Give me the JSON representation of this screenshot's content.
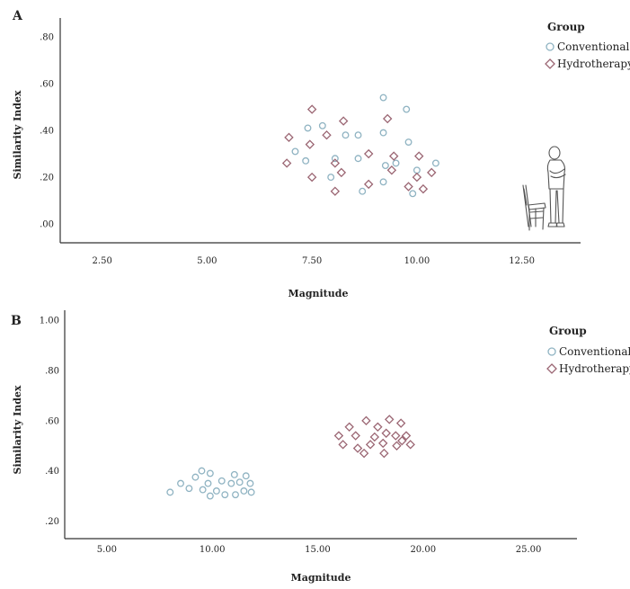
{
  "chart_data": [
    {
      "panel": "A",
      "type": "scatter",
      "xlabel": "Magnitude",
      "ylabel": "Similarity Index",
      "xlim": [
        1.5,
        13.9
      ],
      "ylim": [
        -0.08,
        0.88
      ],
      "xticks": [
        2.5,
        5.0,
        7.5,
        10.0,
        12.5
      ],
      "xtick_labels": [
        "2.50",
        "5.00",
        "7.50",
        "10.00",
        "12.50"
      ],
      "yticks": [
        0.0,
        0.2,
        0.4,
        0.6,
        0.8
      ],
      "ytick_labels": [
        ".00",
        ".20",
        ".40",
        ".60",
        ".80"
      ],
      "legend": {
        "title": "Group",
        "position": "top-right"
      },
      "series": [
        {
          "name": "Conventional",
          "marker": "circle",
          "color": "#8fb3c2",
          "points": [
            [
              7.4,
              0.41
            ],
            [
              7.1,
              0.31
            ],
            [
              7.35,
              0.27
            ],
            [
              7.75,
              0.42
            ],
            [
              8.05,
              0.28
            ],
            [
              8.3,
              0.38
            ],
            [
              8.6,
              0.38
            ],
            [
              7.95,
              0.2
            ],
            [
              8.6,
              0.28
            ],
            [
              8.7,
              0.14
            ],
            [
              9.2,
              0.54
            ],
            [
              9.2,
              0.39
            ],
            [
              9.25,
              0.25
            ],
            [
              9.5,
              0.26
            ],
            [
              9.75,
              0.49
            ],
            [
              9.8,
              0.35
            ],
            [
              9.2,
              0.18
            ],
            [
              10.0,
              0.23
            ],
            [
              9.9,
              0.13
            ],
            [
              10.45,
              0.26
            ]
          ]
        },
        {
          "name": "Hydrotherapy",
          "marker": "diamond",
          "color": "#9b6673",
          "points": [
            [
              7.5,
              0.49
            ],
            [
              6.95,
              0.37
            ],
            [
              6.9,
              0.26
            ],
            [
              7.45,
              0.34
            ],
            [
              7.85,
              0.38
            ],
            [
              8.25,
              0.44
            ],
            [
              8.05,
              0.26
            ],
            [
              8.2,
              0.22
            ],
            [
              7.5,
              0.2
            ],
            [
              8.05,
              0.14
            ],
            [
              8.85,
              0.3
            ],
            [
              8.85,
              0.17
            ],
            [
              9.3,
              0.45
            ],
            [
              9.45,
              0.29
            ],
            [
              9.4,
              0.23
            ],
            [
              9.8,
              0.16
            ],
            [
              10.05,
              0.29
            ],
            [
              10.0,
              0.2
            ],
            [
              10.35,
              0.22
            ],
            [
              10.15,
              0.15
            ]
          ]
        }
      ]
    },
    {
      "panel": "B",
      "type": "scatter",
      "xlabel": "Magnitude",
      "ylabel": "Similarity Index",
      "xlim": [
        3.0,
        27.3
      ],
      "ylim": [
        0.13,
        1.04
      ],
      "xticks": [
        5.0,
        10.0,
        15.0,
        20.0,
        25.0
      ],
      "xtick_labels": [
        "5.00",
        "10.00",
        "15.00",
        "20.00",
        "25.00"
      ],
      "yticks": [
        0.2,
        0.4,
        0.6,
        0.8,
        1.0
      ],
      "ytick_labels": [
        ".20",
        ".40",
        ".60",
        ".80",
        "1.00"
      ],
      "legend": {
        "title": "Group",
        "position": "top-right"
      },
      "series": [
        {
          "name": "Conventional",
          "marker": "circle",
          "color": "#8fb3c2",
          "points": [
            [
              8.0,
              0.315
            ],
            [
              8.5,
              0.35
            ],
            [
              8.9,
              0.33
            ],
            [
              9.2,
              0.375
            ],
            [
              9.5,
              0.4
            ],
            [
              9.55,
              0.325
            ],
            [
              9.8,
              0.35
            ],
            [
              9.9,
              0.39
            ],
            [
              9.9,
              0.3
            ],
            [
              10.2,
              0.32
            ],
            [
              10.45,
              0.36
            ],
            [
              10.6,
              0.305
            ],
            [
              10.9,
              0.35
            ],
            [
              11.05,
              0.385
            ],
            [
              11.1,
              0.305
            ],
            [
              11.3,
              0.355
            ],
            [
              11.5,
              0.32
            ],
            [
              11.6,
              0.38
            ],
            [
              11.8,
              0.35
            ],
            [
              11.85,
              0.315
            ]
          ]
        },
        {
          "name": "Hydrotherapy",
          "marker": "diamond",
          "color": "#9b6673",
          "points": [
            [
              16.0,
              0.54
            ],
            [
              16.2,
              0.505
            ],
            [
              16.5,
              0.575
            ],
            [
              16.8,
              0.54
            ],
            [
              16.9,
              0.49
            ],
            [
              17.3,
              0.6
            ],
            [
              17.2,
              0.47
            ],
            [
              17.5,
              0.505
            ],
            [
              17.7,
              0.535
            ],
            [
              17.85,
              0.575
            ],
            [
              18.1,
              0.51
            ],
            [
              18.15,
              0.47
            ],
            [
              18.25,
              0.55
            ],
            [
              18.4,
              0.605
            ],
            [
              18.7,
              0.54
            ],
            [
              18.75,
              0.5
            ],
            [
              18.95,
              0.59
            ],
            [
              19.2,
              0.54
            ],
            [
              19.4,
              0.505
            ],
            [
              19.0,
              0.52
            ]
          ]
        }
      ]
    }
  ]
}
